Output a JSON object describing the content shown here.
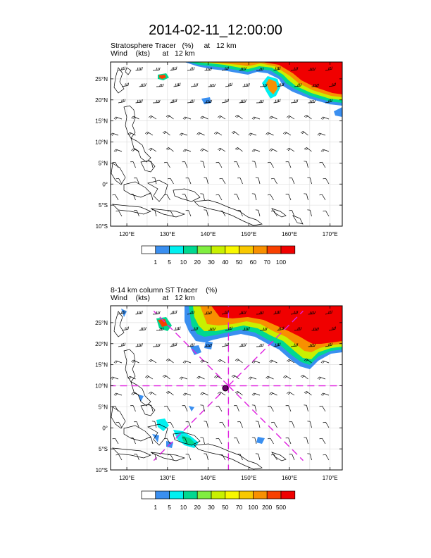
{
  "title": "2014-02-11_12:00:00",
  "panels": [
    {
      "line1": "Stratosphere Tracer   (%)     at   12 km",
      "line2": "Wind    (kts)      at   12 km",
      "lat_labels": [
        "25°N",
        "20°N",
        "15°N",
        "10°N",
        "5°N",
        "0°",
        "5°S",
        "10°S"
      ],
      "lon_labels": [
        "120°E",
        "130°E",
        "140°E",
        "150°E",
        "160°E",
        "170°E"
      ],
      "colorbar": {
        "labels": [
          "1",
          "5",
          "10",
          "20",
          "30",
          "40",
          "50",
          "60",
          "70",
          "100"
        ],
        "colors": [
          "#ffffff",
          "#3a8ff0",
          "#00f0f0",
          "#00d890",
          "#80ee40",
          "#c8f000",
          "#f8f800",
          "#f8c800",
          "#f89000",
          "#f84000",
          "#f00000"
        ]
      }
    },
    {
      "line1": "8-14 km column ST Tracer    (%)",
      "line2": "Wind    (kts)      at   12 km",
      "lat_labels": [
        "25°N",
        "20°N",
        "15°N",
        "10°N",
        "5°N",
        "0°",
        "5°S",
        "10°S"
      ],
      "lon_labels": [
        "120°E",
        "130°E",
        "140°E",
        "150°E",
        "160°E",
        "170°E"
      ],
      "colorbar": {
        "labels": [
          "1",
          "5",
          "10",
          "20",
          "30",
          "50",
          "70",
          "100",
          "200",
          "500"
        ],
        "colors": [
          "#ffffff",
          "#3a8ff0",
          "#00f0f0",
          "#00d890",
          "#80ee40",
          "#c8f000",
          "#f8f800",
          "#f8c800",
          "#f89000",
          "#f84000",
          "#f00000"
        ]
      }
    }
  ],
  "map_extent": {
    "lon": [
      116,
      173
    ],
    "lat": [
      -10,
      29
    ]
  },
  "cross_center": {
    "lon": 145,
    "lat": 10
  },
  "accent_magenta": "#e020e0"
}
